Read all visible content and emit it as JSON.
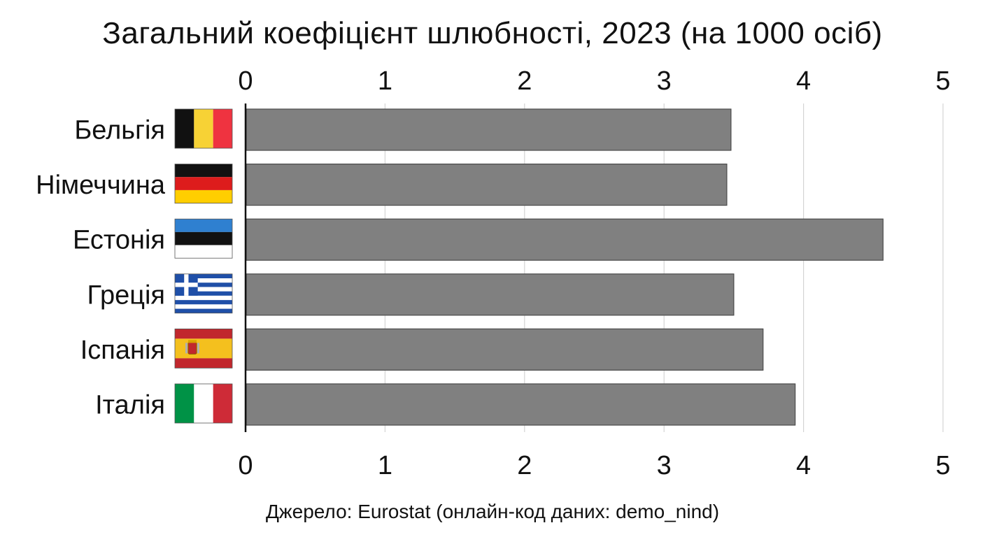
{
  "chart_data": {
    "type": "bar",
    "orientation": "horizontal",
    "title": "Загальний коефіцієнт шлюбності, 2023 (на 1000 осіб)",
    "categories": [
      "Бельгія",
      "Німеччина",
      "Естонія",
      "Греція",
      "Іспанія",
      "Італія"
    ],
    "flags": [
      "flag-belgium-icon",
      "flag-germany-icon",
      "flag-estonia-icon",
      "flag-greece-icon",
      "flag-spain-icon",
      "flag-italy-icon"
    ],
    "values": [
      3.48,
      3.45,
      4.57,
      3.5,
      3.71,
      3.94
    ],
    "xlim": [
      0,
      5
    ],
    "xticks": [
      "0",
      "1",
      "2",
      "3",
      "4",
      "5"
    ],
    "tick_positions": [
      "top",
      "bottom"
    ],
    "grid": true,
    "bar_color": "#808080",
    "source": "Джерело: Eurostat (онлайн-код даних: demo_nind)"
  }
}
